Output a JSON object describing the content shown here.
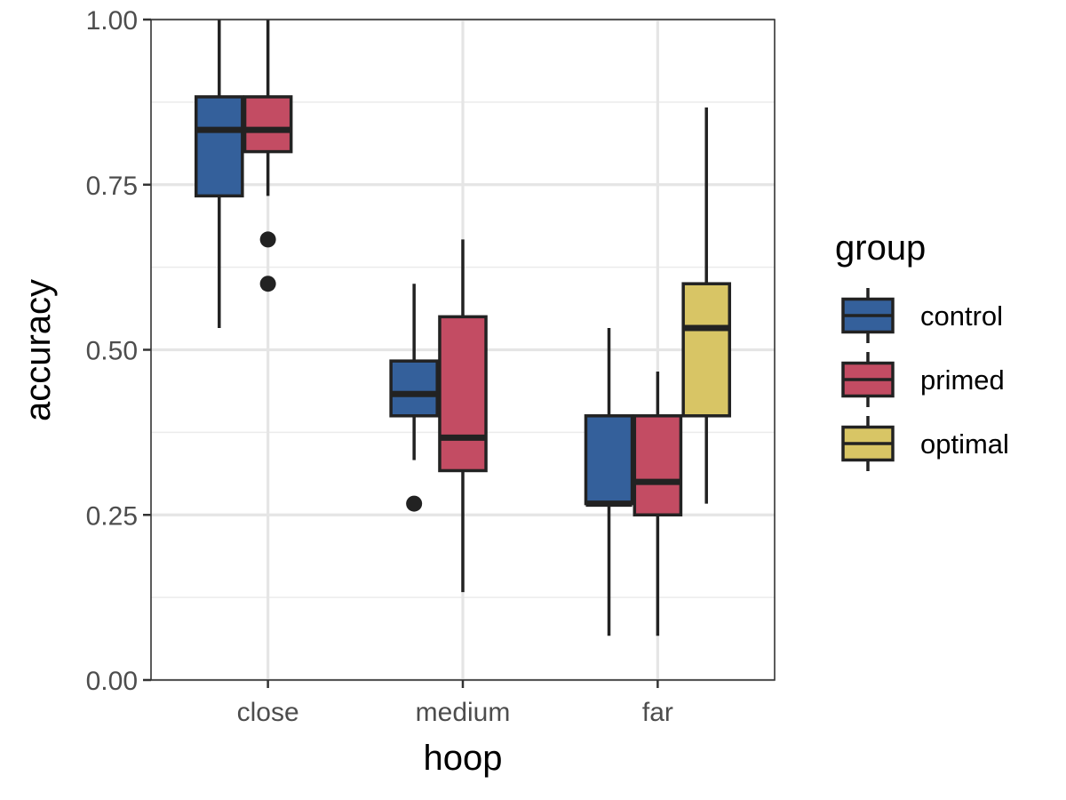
{
  "chart_data": {
    "type": "boxplot",
    "xlabel": "hoop",
    "ylabel": "accuracy",
    "categories": [
      "close",
      "medium",
      "far"
    ],
    "ylim": [
      0,
      1
    ],
    "yticks": [
      0,
      0.25,
      0.5,
      0.75,
      1
    ],
    "ytick_labels": [
      "0.00",
      "0.25",
      "0.50",
      "0.75",
      "1.00"
    ],
    "grid": true,
    "legend": {
      "title": "group",
      "position": "right",
      "items": [
        {
          "name": "control",
          "color": "#34609B"
        },
        {
          "name": "primed",
          "color": "#C34C63"
        },
        {
          "name": "optimal",
          "color": "#D8C565"
        }
      ]
    },
    "series": [
      {
        "name": "control",
        "color": "#34609B",
        "boxes": [
          {
            "category": "close",
            "whisker_low": 0.533,
            "q1": 0.733,
            "median": 0.833,
            "q3": 0.883,
            "whisker_high": 1.0,
            "outliers": []
          },
          {
            "category": "medium",
            "whisker_low": 0.333,
            "q1": 0.4,
            "median": 0.433,
            "q3": 0.483,
            "whisker_high": 0.6,
            "outliers": [
              0.267
            ]
          },
          {
            "category": "far",
            "whisker_low": 0.067,
            "q1": 0.267,
            "median": 0.267,
            "q3": 0.4,
            "whisker_high": 0.533,
            "outliers": []
          }
        ]
      },
      {
        "name": "primed",
        "color": "#C34C63",
        "boxes": [
          {
            "category": "close",
            "whisker_low": 0.733,
            "q1": 0.8,
            "median": 0.833,
            "q3": 0.883,
            "whisker_high": 1.0,
            "outliers": [
              0.667,
              0.6
            ]
          },
          {
            "category": "medium",
            "whisker_low": 0.133,
            "q1": 0.317,
            "median": 0.367,
            "q3": 0.55,
            "whisker_high": 0.667,
            "outliers": []
          },
          {
            "category": "far",
            "whisker_low": 0.067,
            "q1": 0.25,
            "median": 0.3,
            "q3": 0.4,
            "whisker_high": 0.467,
            "outliers": []
          }
        ]
      },
      {
        "name": "optimal",
        "color": "#D8C565",
        "boxes": [
          {
            "category": "far",
            "whisker_low": 0.267,
            "q1": 0.4,
            "median": 0.533,
            "q3": 0.6,
            "whisker_high": 0.867,
            "outliers": []
          }
        ]
      }
    ]
  }
}
